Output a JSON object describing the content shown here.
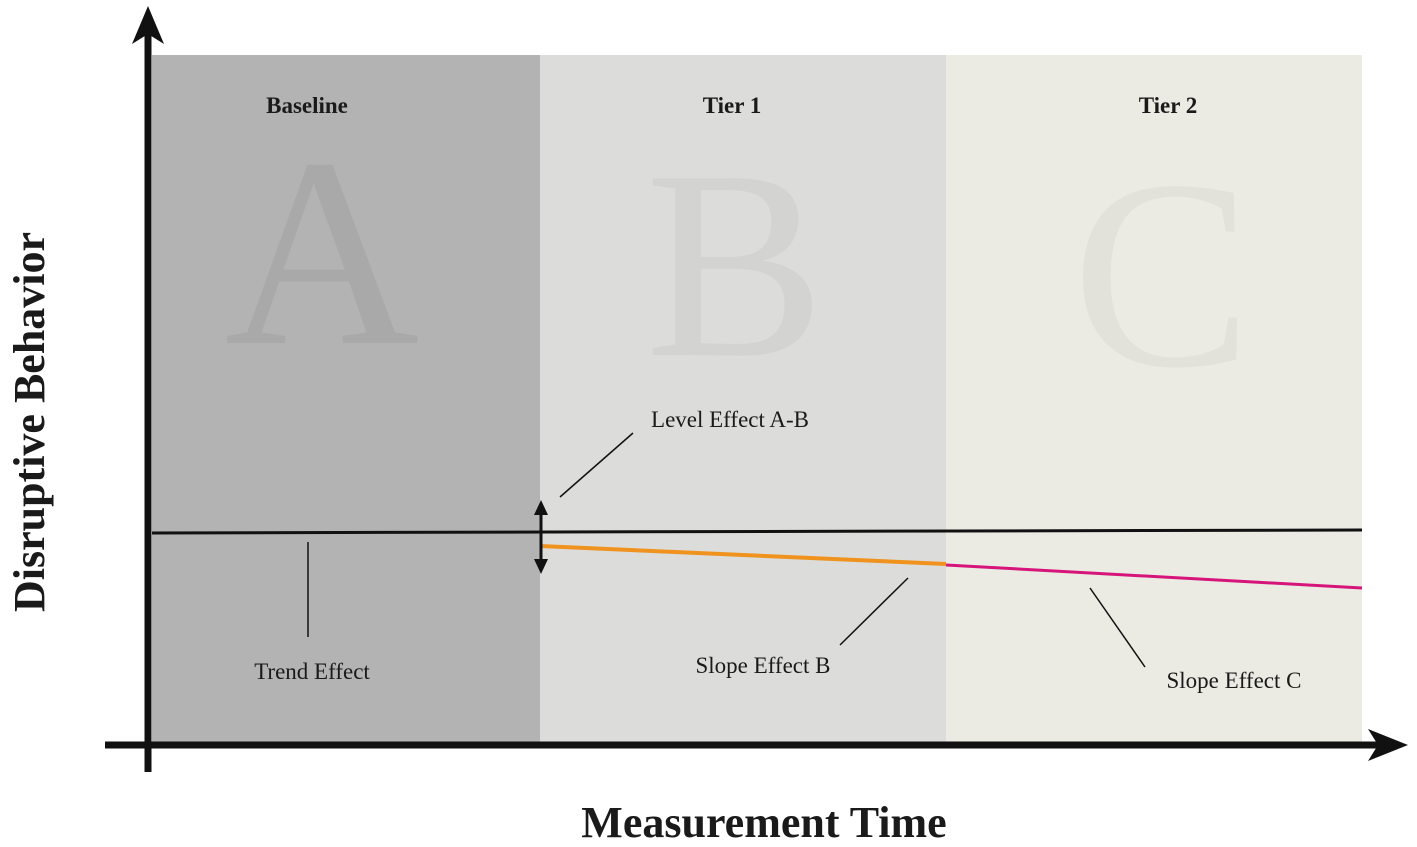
{
  "y_axis_label": "Disruptive Behavior",
  "x_axis_label": "Measurement Time",
  "phases": [
    {
      "title": "Baseline",
      "letter": "A"
    },
    {
      "title": "Tier 1",
      "letter": "B"
    },
    {
      "title": "Tier 2",
      "letter": "C"
    }
  ],
  "annotations": {
    "level_effect": "Level Effect A-B",
    "trend_effect": "Trend Effect",
    "slope_effect_b": "Slope Effect B",
    "slope_effect_c": "Slope Effect C"
  }
}
